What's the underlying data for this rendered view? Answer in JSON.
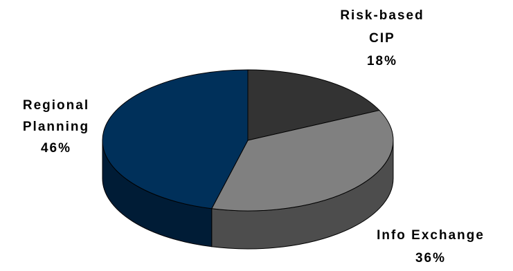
{
  "chart_data": {
    "type": "pie",
    "style": "3d",
    "legend": "none",
    "slices": [
      {
        "label_lines": [
          "Risk-based",
          "CIP"
        ],
        "value": 18,
        "value_label": "18%",
        "color": "#333333",
        "side_color": "#1f1f1f"
      },
      {
        "label_lines": [
          "Info Exchange"
        ],
        "value": 36,
        "value_label": "36%",
        "color": "#808080",
        "side_color": "#4d4d4d"
      },
      {
        "label_lines": [
          "Regional",
          "Planning"
        ],
        "value": 46,
        "value_label": "46%",
        "color": "#00305a",
        "side_color": "#001c36"
      }
    ]
  }
}
